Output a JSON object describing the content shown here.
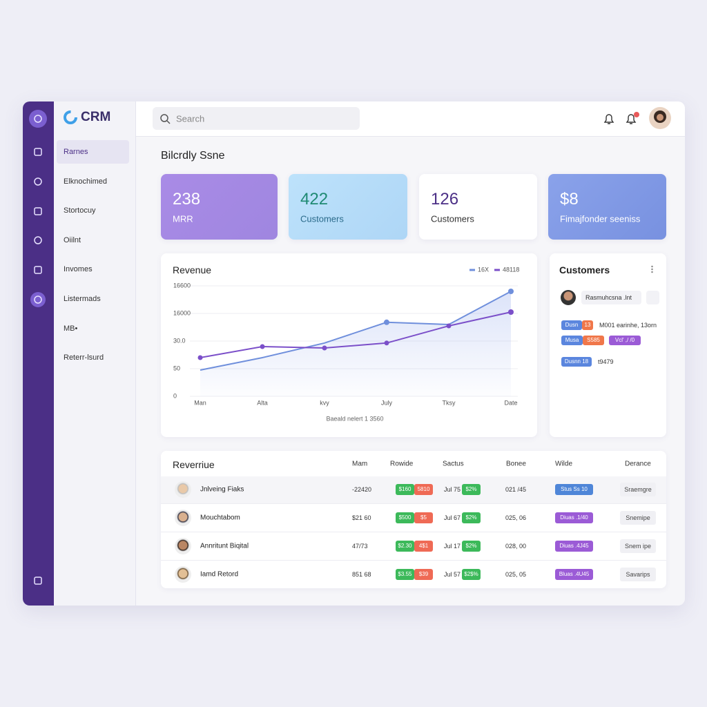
{
  "brand": "CRM",
  "search_placeholder": "Search",
  "nav": [
    "Rarnes",
    "Elknochimed",
    "Stortocuy",
    "Oiilnt",
    "Invomes",
    "Listermads",
    "MB•",
    "Reterr-lsurd"
  ],
  "page_title": "Bilcrdly Ssne",
  "kpis": [
    {
      "value": "238",
      "label": "MRR"
    },
    {
      "value": "422",
      "label": "Customers"
    },
    {
      "value": "126",
      "label": "Customers"
    },
    {
      "value": "$8",
      "label": "Fimajfonder seeniss"
    }
  ],
  "revenue_chart": {
    "type": "line",
    "title": "Revenue",
    "caption": "Baeald nelert 1 3560",
    "categories": [
      "Man",
      "Alta",
      "kvy",
      "July",
      "Tksy",
      "Date"
    ],
    "ylim": [
      0,
      4
    ],
    "yticks": [
      {
        "value": 0,
        "label": "0"
      },
      {
        "value": 1,
        "label": "50"
      },
      {
        "value": 2,
        "label": "30.0"
      },
      {
        "value": 3,
        "label": "16000"
      },
      {
        "value": 4,
        "label": "16600"
      }
    ],
    "series": [
      {
        "name": "16X",
        "color": "#6f8fdc",
        "values": [
          0.95,
          1.4,
          1.93,
          2.68,
          2.6,
          3.8
        ]
      },
      {
        "name": "48118",
        "color": "#7b4fc9",
        "values": [
          1.4,
          1.8,
          1.75,
          1.93,
          2.55,
          3.05
        ]
      }
    ]
  },
  "customers": {
    "title": "Customers",
    "contact": "Rasmuhcsna .lnt",
    "tags": [
      {
        "items": [
          "Dusn",
          "13"
        ],
        "note": "M001 earinhe, 13orn"
      },
      {
        "items": [
          "Musa",
          "S585",
          "Vcl' ,/ /0"
        ]
      },
      {
        "items": [
          "Dusnn 18"
        ],
        "note": "t9479"
      }
    ]
  },
  "table": {
    "title": "Reverriue",
    "headers": [
      "Mam",
      "Rowide",
      "Sactus",
      "Bonee",
      "Wilde",
      "Derance"
    ],
    "rows": [
      [
        "Jnlveing Fiaks",
        "-22420",
        "$160",
        "5810",
        "Jul 75",
        "$2%",
        "021 /45",
        "Stus Ss 10",
        "Sraemgre"
      ],
      [
        "Mouchtabom",
        "$21 60",
        "$500",
        "$5",
        "Jul 67",
        "$2%",
        "025, 06",
        "Diuas .1/40",
        "Snemipe"
      ],
      [
        "Annritunt Biqital",
        "47/73",
        "$2.30",
        "4$1",
        "Jul 17",
        "$2%",
        "028, 00",
        "Diuas .4J45",
        "Snem ipe"
      ],
      [
        "Iamd Retord",
        "851 68",
        "$3.55",
        "$39",
        "Jul 57",
        "$2$%",
        "025, 05",
        "Bluas .4U45",
        "Savarips"
      ]
    ]
  }
}
